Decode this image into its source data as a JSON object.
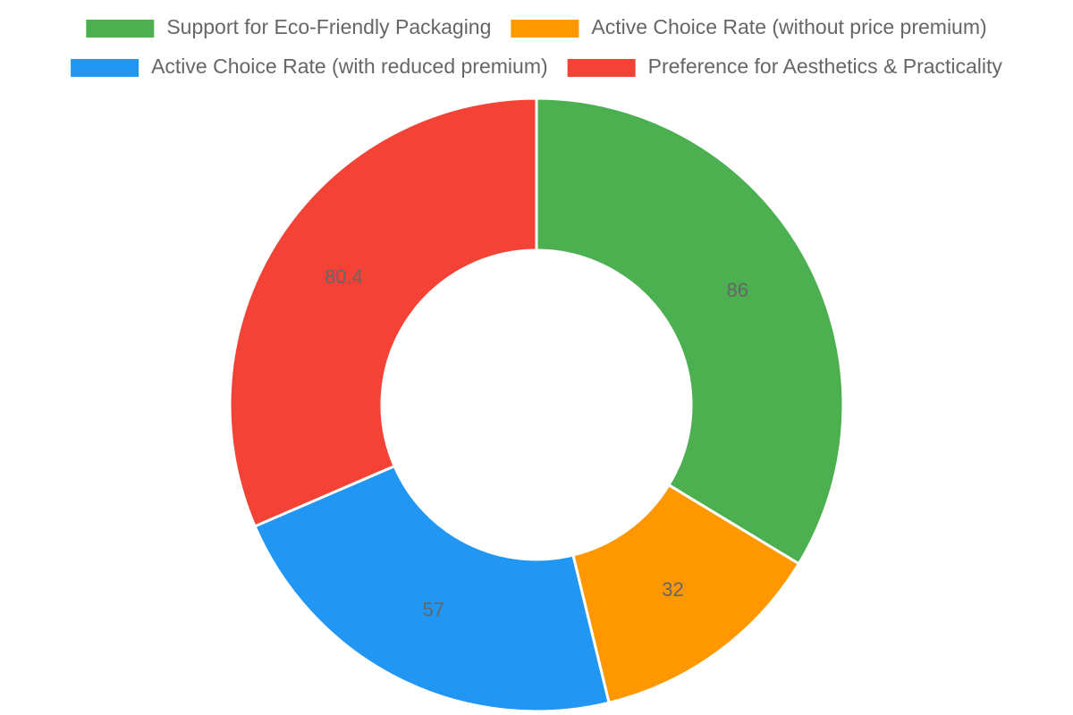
{
  "chart_data": {
    "type": "doughnut",
    "categories": [
      "Support for Eco-Friendly Packaging",
      "Active Choice Rate (without price premium)",
      "Active Choice Rate (with reduced premium)",
      "Preference for Aesthetics & Practicality"
    ],
    "values": [
      86,
      32,
      57,
      80.4
    ],
    "colors": [
      "#4caf50",
      "#ff9800",
      "#2196f3",
      "#f44336"
    ],
    "legend": "top"
  }
}
